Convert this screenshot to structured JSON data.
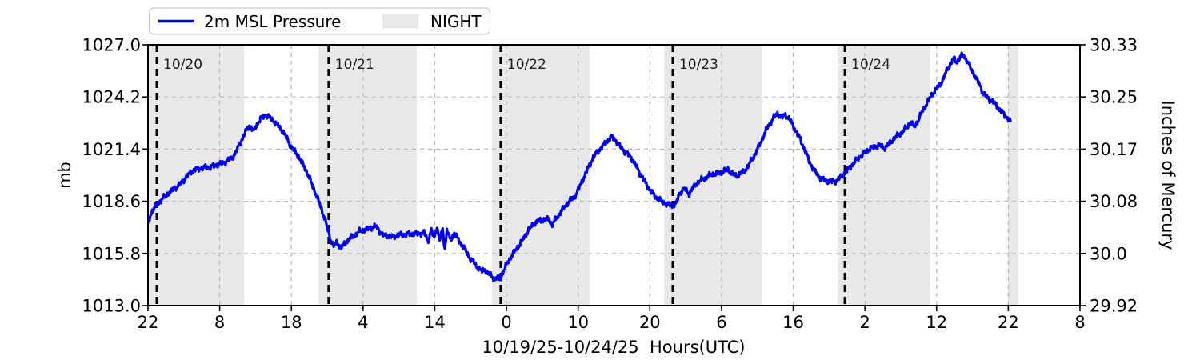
{
  "colors": {
    "line": "#0000ee",
    "night": "#e8e8e8",
    "grid": "#b8b8b8",
    "spine": "#000000",
    "dayline": "#000000",
    "background": "#ffffff"
  },
  "chart_data": {
    "type": "line",
    "title": "",
    "xlabel": "10/19/25-10/24/25  Hours(UTC)",
    "ylabel_left": "mb",
    "ylabel_right": "Inches of Mercury",
    "grid": true,
    "legend_position": "top-left, outside axes",
    "legend": [
      {
        "label": "2m MSL Pressure",
        "type": "line",
        "color": "#0000ee"
      },
      {
        "label": "NIGHT",
        "type": "patch",
        "color": "#e8e8e8"
      }
    ],
    "x_axis": {
      "unit": "hours since 10/19/25 22:00 UTC",
      "range_hours": [
        0,
        130
      ],
      "tick_hours": [
        0,
        10,
        20,
        30,
        40,
        50,
        60,
        70,
        80,
        90,
        100,
        110,
        120,
        130
      ],
      "tick_labels": [
        "22",
        "8",
        "18",
        "4",
        "14",
        "0",
        "10",
        "20",
        "6",
        "16",
        "2",
        "12",
        "22",
        "8"
      ]
    },
    "y_left": {
      "unit": "mb",
      "range": [
        1013.0,
        1027.0
      ],
      "tick_values": [
        1027.0,
        1024.2,
        1021.4,
        1018.6,
        1015.8,
        1013.0
      ],
      "tick_labels": [
        "1027.0",
        "1024.2",
        "1021.4",
        "1018.6",
        "1015.8",
        "1013.0"
      ]
    },
    "y_right": {
      "unit": "inches of mercury",
      "tick_labels": [
        "30.33",
        "30.25",
        "30.17",
        "30.08",
        "30.0",
        "29.92"
      ]
    },
    "night_bands_hours": [
      [
        0,
        13.4
      ],
      [
        23.8,
        37.5
      ],
      [
        48.0,
        61.6
      ],
      [
        72.0,
        85.6
      ],
      [
        96.2,
        109.1
      ],
      [
        119.9,
        121.4
      ]
    ],
    "day_lines": [
      {
        "hour": 1.23,
        "label": "10/20"
      },
      {
        "hour": 25.2,
        "label": "10/21"
      },
      {
        "hour": 49.2,
        "label": "10/22"
      },
      {
        "hour": 73.2,
        "label": "10/23"
      },
      {
        "hour": 97.2,
        "label": "10/24"
      }
    ],
    "series": [
      {
        "name": "2m MSL Pressure",
        "noise_amplitude_mb": 0.1,
        "keypoints_hour_mb": [
          [
            0,
            1017.35
          ],
          [
            0.4,
            1017.95
          ],
          [
            0.9,
            1018.25
          ],
          [
            1.5,
            1018.55
          ],
          [
            2.2,
            1018.8
          ],
          [
            2.9,
            1019.05
          ],
          [
            3.7,
            1019.3
          ],
          [
            4.5,
            1019.5
          ],
          [
            5.3,
            1019.9
          ],
          [
            6.1,
            1020.2
          ],
          [
            7,
            1020.35
          ],
          [
            7.8,
            1020.4
          ],
          [
            8.7,
            1020.45
          ],
          [
            9.5,
            1020.55
          ],
          [
            10.4,
            1020.65
          ],
          [
            11.2,
            1020.8
          ],
          [
            11.8,
            1020.95
          ],
          [
            12.3,
            1021.25
          ],
          [
            12.8,
            1021.7
          ],
          [
            13.5,
            1022.2
          ],
          [
            13.9,
            1022.6
          ],
          [
            14.3,
            1022.65
          ],
          [
            14.7,
            1022.35
          ],
          [
            15.3,
            1022.8
          ],
          [
            15.9,
            1023.1
          ],
          [
            16.4,
            1023.25
          ],
          [
            16.9,
            1023.1
          ],
          [
            17.4,
            1022.95
          ],
          [
            18.1,
            1022.7
          ],
          [
            18.8,
            1022.35
          ],
          [
            19.4,
            1021.95
          ],
          [
            20.1,
            1021.45
          ],
          [
            21,
            1021.0
          ],
          [
            22,
            1020.3
          ],
          [
            23,
            1019.4
          ],
          [
            24,
            1018.4
          ],
          [
            24.8,
            1017.5
          ],
          [
            25.4,
            1016.6
          ],
          [
            25.9,
            1016.2
          ],
          [
            26.4,
            1016.4
          ],
          [
            26.9,
            1016.1
          ],
          [
            27.9,
            1016.5
          ],
          [
            29,
            1016.85
          ],
          [
            29.6,
            1017.0
          ],
          [
            30.5,
            1017.1
          ],
          [
            31.3,
            1017.2
          ],
          [
            31.8,
            1017.25
          ],
          [
            32.7,
            1016.8
          ],
          [
            34,
            1016.7
          ],
          [
            35.2,
            1016.8
          ],
          [
            36.3,
            1016.85
          ],
          [
            37.4,
            1016.85
          ],
          [
            38.5,
            1016.9
          ],
          [
            39.1,
            1016.45
          ],
          [
            39.5,
            1017.1
          ],
          [
            39.9,
            1016.6
          ],
          [
            40.3,
            1017.25
          ],
          [
            40.7,
            1016.5
          ],
          [
            41.1,
            1017.1
          ],
          [
            41.4,
            1016.05
          ],
          [
            41.7,
            1017.05
          ],
          [
            42.2,
            1016.5
          ],
          [
            42.7,
            1016.9
          ],
          [
            43.2,
            1016.6
          ],
          [
            43.7,
            1016.3
          ],
          [
            44.3,
            1015.95
          ],
          [
            44.9,
            1015.55
          ],
          [
            45.5,
            1015.3
          ],
          [
            46.1,
            1015.0
          ],
          [
            46.6,
            1014.85
          ],
          [
            47,
            1014.95
          ],
          [
            47.5,
            1014.7
          ],
          [
            48,
            1014.55
          ],
          [
            48.4,
            1014.4
          ],
          [
            48.8,
            1014.5
          ],
          [
            49.1,
            1014.4
          ],
          [
            49.4,
            1014.7
          ],
          [
            49.9,
            1015.1
          ],
          [
            50.4,
            1015.5
          ],
          [
            50.9,
            1015.75
          ],
          [
            51.4,
            1016.05
          ],
          [
            51.9,
            1016.3
          ],
          [
            52.5,
            1016.7
          ],
          [
            53.1,
            1017.05
          ],
          [
            53.8,
            1017.4
          ],
          [
            54.5,
            1017.55
          ],
          [
            55.3,
            1017.6
          ],
          [
            55.9,
            1017.65
          ],
          [
            56.4,
            1017.35
          ],
          [
            57,
            1017.7
          ],
          [
            57.6,
            1018.05
          ],
          [
            58.3,
            1018.4
          ],
          [
            58.9,
            1018.65
          ],
          [
            59.4,
            1018.8
          ],
          [
            60,
            1019.2
          ],
          [
            60.7,
            1019.8
          ],
          [
            61.4,
            1020.4
          ],
          [
            62.1,
            1020.95
          ],
          [
            62.8,
            1021.3
          ],
          [
            63.5,
            1021.6
          ],
          [
            64.1,
            1021.85
          ],
          [
            64.7,
            1022.05
          ],
          [
            65.2,
            1021.9
          ],
          [
            65.9,
            1021.5
          ],
          [
            66.6,
            1021.25
          ],
          [
            67.3,
            1021.0
          ],
          [
            68,
            1020.55
          ],
          [
            68.7,
            1020.05
          ],
          [
            69.4,
            1019.6
          ],
          [
            70.1,
            1019.15
          ],
          [
            70.8,
            1018.85
          ],
          [
            71.6,
            1018.6
          ],
          [
            72.4,
            1018.45
          ],
          [
            73.2,
            1018.35
          ],
          [
            73.7,
            1018.5
          ],
          [
            74.1,
            1019.0
          ],
          [
            74.7,
            1019.25
          ],
          [
            75.1,
            1019.15
          ],
          [
            75.5,
            1019.0
          ],
          [
            76,
            1019.3
          ],
          [
            76.5,
            1019.55
          ],
          [
            77.2,
            1019.75
          ],
          [
            77.9,
            1019.9
          ],
          [
            78.7,
            1020.05
          ],
          [
            79.5,
            1020.1
          ],
          [
            80.3,
            1020.2
          ],
          [
            80.9,
            1020.3
          ],
          [
            81.5,
            1020.1
          ],
          [
            81.9,
            1019.95
          ],
          [
            82.5,
            1020.05
          ],
          [
            83.1,
            1020.2
          ],
          [
            83.8,
            1020.55
          ],
          [
            84.5,
            1021.0
          ],
          [
            85.2,
            1021.55
          ],
          [
            85.9,
            1022.15
          ],
          [
            86.6,
            1022.7
          ],
          [
            87.3,
            1023.1
          ],
          [
            87.8,
            1023.3
          ],
          [
            88.4,
            1023.1
          ],
          [
            88.9,
            1023.25
          ],
          [
            89.5,
            1023.0
          ],
          [
            90.2,
            1022.5
          ],
          [
            90.9,
            1022.0
          ],
          [
            91.6,
            1021.35
          ],
          [
            92.3,
            1020.7
          ],
          [
            93,
            1020.2
          ],
          [
            93.8,
            1019.85
          ],
          [
            94.6,
            1019.7
          ],
          [
            95.4,
            1019.65
          ],
          [
            96.2,
            1019.75
          ],
          [
            96.9,
            1020.0
          ],
          [
            97.5,
            1020.25
          ],
          [
            98.2,
            1020.55
          ],
          [
            99,
            1020.9
          ],
          [
            99.8,
            1021.15
          ],
          [
            100.6,
            1021.4
          ],
          [
            101.4,
            1021.55
          ],
          [
            102,
            1021.6
          ],
          [
            102.7,
            1021.45
          ],
          [
            103.3,
            1021.65
          ],
          [
            103.9,
            1021.9
          ],
          [
            104.6,
            1022.15
          ],
          [
            105.3,
            1022.35
          ],
          [
            105.9,
            1022.6
          ],
          [
            106.4,
            1022.85
          ],
          [
            106.9,
            1022.6
          ],
          [
            107.5,
            1023.0
          ],
          [
            108.1,
            1023.5
          ],
          [
            108.7,
            1023.9
          ],
          [
            109.4,
            1024.35
          ],
          [
            110.1,
            1024.7
          ],
          [
            110.7,
            1025.0
          ],
          [
            111.3,
            1025.5
          ],
          [
            111.9,
            1026.0
          ],
          [
            112.4,
            1026.25
          ],
          [
            112.8,
            1026.05
          ],
          [
            113.3,
            1026.35
          ],
          [
            113.7,
            1026.45
          ],
          [
            114.2,
            1026.2
          ],
          [
            114.8,
            1025.7
          ],
          [
            115.4,
            1025.3
          ],
          [
            116,
            1024.85
          ],
          [
            116.6,
            1024.35
          ],
          [
            117.2,
            1024.1
          ],
          [
            117.9,
            1023.95
          ],
          [
            118.5,
            1023.65
          ],
          [
            119.2,
            1023.35
          ],
          [
            119.8,
            1023.1
          ],
          [
            120.3,
            1022.9
          ]
        ]
      }
    ]
  }
}
